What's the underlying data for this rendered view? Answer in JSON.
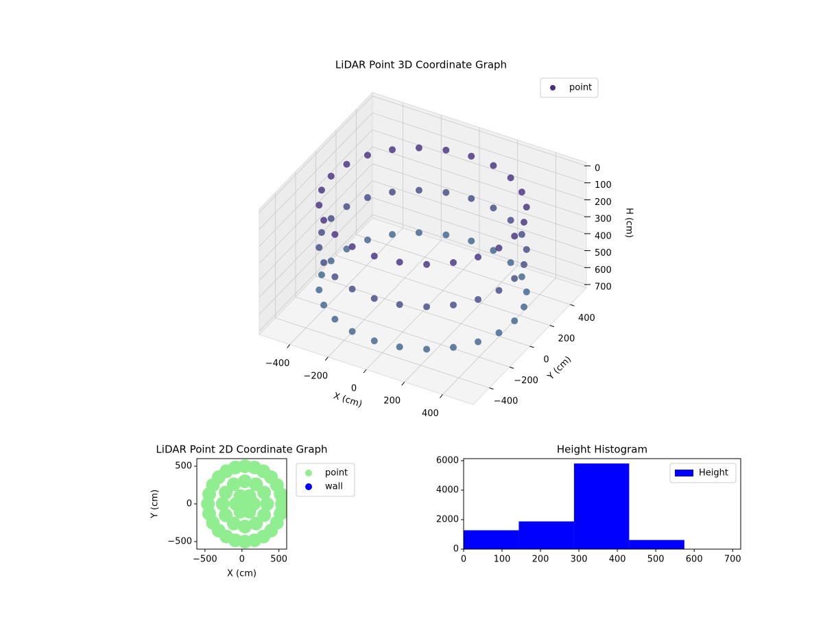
{
  "chart_data": [
    {
      "type": "scatter3d",
      "title": "LiDAR Point 3D Coordinate Graph",
      "xlabel": "X (cm)",
      "ylabel": "Y (cm)",
      "zlabel": "H (cm)",
      "xlim": [
        -560,
        560
      ],
      "ylim": [
        -560,
        560
      ],
      "zlim": [
        720,
        -20
      ],
      "xticks": [
        {
          "value": -400,
          "label": "−400"
        },
        {
          "value": -200,
          "label": "−200"
        },
        0,
        200,
        400
      ],
      "yticks": [
        {
          "value": -400,
          "label": "−400"
        },
        {
          "value": -200,
          "label": "−200"
        },
        0,
        200,
        400
      ],
      "zticks": [
        0,
        100,
        200,
        300,
        400,
        500,
        600,
        700
      ],
      "grid": true,
      "legend": "upper right",
      "series": [
        {
          "name": "point",
          "color": "#472d7b",
          "colors": [
            "#3a6e8e",
            "#46217a"
          ],
          "x": [
            480,
            464,
            416,
            339,
            240,
            124,
            0,
            -124,
            -240,
            -339,
            -416,
            -464,
            -480,
            -464,
            -416,
            -339,
            -240,
            -124,
            0,
            124,
            240,
            339,
            416,
            464,
            480,
            464,
            416,
            339,
            240,
            124,
            0,
            -124,
            -240,
            -339,
            -416,
            -464,
            -480,
            -464,
            -416,
            -339,
            -240,
            -124,
            0,
            124,
            240,
            339,
            416,
            464,
            480,
            464,
            416,
            339,
            240,
            124,
            0,
            -124,
            -240,
            -339,
            -416,
            -464,
            -480,
            -464,
            -416,
            -339,
            -240,
            -124,
            0,
            124,
            240,
            339,
            416,
            464
          ],
          "y": [
            0,
            124,
            240,
            339,
            416,
            464,
            480,
            464,
            416,
            339,
            240,
            124,
            0,
            -124,
            -240,
            -339,
            -416,
            -464,
            -480,
            -464,
            -416,
            -339,
            -240,
            -124,
            0,
            124,
            240,
            339,
            416,
            464,
            480,
            464,
            416,
            339,
            240,
            124,
            0,
            -124,
            -240,
            -339,
            -416,
            -464,
            -480,
            -464,
            -416,
            -339,
            -240,
            -124,
            0,
            124,
            240,
            339,
            416,
            464,
            480,
            464,
            416,
            339,
            240,
            124,
            0,
            -124,
            -240,
            -339,
            -416,
            -464,
            -480,
            -464,
            -416,
            -339,
            -240,
            -124
          ],
          "z": [
            100,
            100,
            100,
            100,
            100,
            100,
            100,
            100,
            100,
            100,
            100,
            100,
            100,
            100,
            100,
            100,
            100,
            100,
            100,
            100,
            100,
            100,
            100,
            100,
            350,
            350,
            350,
            350,
            350,
            350,
            350,
            350,
            350,
            350,
            350,
            350,
            350,
            350,
            350,
            350,
            350,
            350,
            350,
            350,
            350,
            350,
            350,
            350,
            600,
            600,
            600,
            600,
            600,
            600,
            600,
            600,
            600,
            600,
            600,
            600,
            600,
            600,
            600,
            600,
            600,
            600,
            600,
            600,
            600,
            600,
            600,
            600
          ]
        }
      ]
    },
    {
      "type": "scatter",
      "title": "LiDAR Point 2D Coordinate Graph",
      "xlabel": "X (cm)",
      "ylabel": "Y (cm)",
      "xlim": [
        -610,
        605
      ],
      "ylim": [
        -600,
        600
      ],
      "xticks": [
        {
          "value": -500,
          "label": "−500"
        },
        0,
        500
      ],
      "yticks": [
        {
          "value": -500,
          "label": "−500"
        },
        0,
        500
      ],
      "legend": "outside right",
      "series": [
        {
          "name": "point",
          "color": "#90ee90",
          "x": [
            540,
            523,
            473,
            394,
            290,
            169,
            40,
            -89,
            -210,
            -314,
            -393,
            -443,
            -460,
            -443,
            -393,
            -314,
            -210,
            -89,
            40,
            169,
            290,
            394,
            473,
            523,
            340,
            300,
            190,
            40,
            -110,
            -220,
            -260,
            -220,
            -110,
            40,
            190,
            300,
            160,
            100,
            -20,
            -80,
            -20,
            100,
            40
          ],
          "values": [
            0,
            129,
            250,
            354,
            433,
            483,
            500,
            483,
            433,
            354,
            250,
            129,
            0,
            -129,
            -250,
            -354,
            -433,
            -483,
            -500,
            -483,
            -433,
            -354,
            -250,
            -129,
            0,
            150,
            260,
            300,
            260,
            150,
            0,
            -150,
            -260,
            -300,
            -260,
            -150,
            0,
            104,
            104,
            0,
            -104,
            -104,
            0
          ]
        },
        {
          "name": "wall",
          "color": "#0000ff",
          "x": [],
          "values": []
        }
      ]
    },
    {
      "type": "histogram",
      "title": "Height Histogram",
      "xlim": [
        0,
        721
      ],
      "ylim": [
        0,
        6140
      ],
      "xticks": [
        0,
        100,
        200,
        300,
        400,
        500,
        600,
        700
      ],
      "yticks": [
        0,
        2000,
        4000,
        6000
      ],
      "legend": "upper right",
      "bins": [
        0,
        143.6,
        287.2,
        430.8,
        574.4,
        718
      ],
      "series": [
        {
          "name": "Height",
          "color": "#0000ff",
          "values": [
            1280,
            1880,
            5810,
            620,
            5
          ]
        }
      ]
    }
  ]
}
